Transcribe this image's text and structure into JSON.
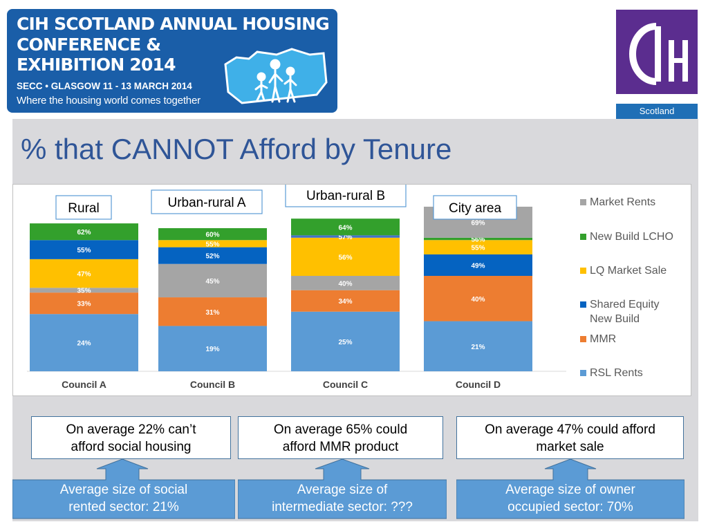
{
  "banner": {
    "line1": "CIH SCOTLAND ANNUAL HOUSING",
    "line2": "CONFERENCE &",
    "line3": "EXHIBITION 2014",
    "venue": "SECC • GLASGOW 11 - 13 MARCH 2014",
    "tagline": "Where the housing world comes together"
  },
  "logo": {
    "caption": "Scotland"
  },
  "slide": {
    "title": "% that CANNOT Afford by Tenure"
  },
  "colors": {
    "RSL Rents": "#5b9bd5",
    "MMR": "#ed7d31",
    "Market Rents": "#a5a5a5",
    "LQ Market Sale": "#ffc000",
    "Shared Equity New Build": "#0563c1",
    "Shared Equity New Build Alt": "#4472c4",
    "New Build LCHO": "#33a02c"
  },
  "chart_data": {
    "type": "bar",
    "categories": [
      "Council A",
      "Council B",
      "Council C",
      "Council D"
    ],
    "area_labels": [
      "Rural",
      "Urban-rural A",
      "Urban-rural B",
      "City area"
    ],
    "legend": [
      "Market Rents",
      "New Build LCHO",
      "LQ Market Sale",
      "Shared Equity New Build",
      "MMR",
      "RSL Rents"
    ],
    "legend_position": "right",
    "bars": [
      {
        "category": "Council A",
        "segments": [
          {
            "series": "RSL Rents",
            "value": 24,
            "label": "24%"
          },
          {
            "series": "MMR",
            "value": 33,
            "label": "33%"
          },
          {
            "series": "Market Rents",
            "value": 35,
            "label": "35%"
          },
          {
            "series": "LQ Market Sale",
            "value": 47,
            "label": "47%"
          },
          {
            "series": "Shared Equity New Build",
            "value": 55,
            "label": "55%"
          },
          {
            "series": "New Build LCHO",
            "value": 62,
            "label": "62%"
          }
        ]
      },
      {
        "category": "Council B",
        "segments": [
          {
            "series": "RSL Rents",
            "value": 19,
            "label": "19%"
          },
          {
            "series": "MMR",
            "value": 31,
            "label": "31%"
          },
          {
            "series": "Market Rents",
            "value": 45,
            "label": "45%"
          },
          {
            "series": "Shared Equity New Build",
            "value": 52,
            "label": "52%"
          },
          {
            "series": "LQ Market Sale",
            "value": 55,
            "label": "55%"
          },
          {
            "series": "New Build LCHO",
            "value": 60,
            "label": "60%"
          }
        ]
      },
      {
        "category": "Council C",
        "segments": [
          {
            "series": "RSL Rents",
            "value": 25,
            "label": "25%"
          },
          {
            "series": "MMR",
            "value": 34,
            "label": "34%"
          },
          {
            "series": "Market Rents",
            "value": 40,
            "label": "40%"
          },
          {
            "series": "LQ Market Sale",
            "value": 56,
            "label": "56%"
          },
          {
            "series": "Shared Equity New Build",
            "value": 57,
            "label": "57%",
            "alt_color": true
          },
          {
            "series": "New Build LCHO",
            "value": 64,
            "label": "64%"
          }
        ]
      },
      {
        "category": "Council D",
        "segments": [
          {
            "series": "RSL Rents",
            "value": 21,
            "label": "21%"
          },
          {
            "series": "MMR",
            "value": 40,
            "label": "40%"
          },
          {
            "series": "Shared Equity New Build",
            "value": 49,
            "label": "49%"
          },
          {
            "series": "LQ Market Sale",
            "value": 55,
            "label": "55%"
          },
          {
            "series": "New Build LCHO",
            "value": 56,
            "label": "56%"
          },
          {
            "series": "Market Rents",
            "value": 69,
            "label": "69%"
          }
        ]
      }
    ]
  },
  "info_boxes": [
    {
      "text": "On average 22% can’t afford social housing",
      "line1": "On average 22% can’t",
      "line2": "afford social housing"
    },
    {
      "text": "On average 65% could afford MMR product",
      "line1": "On average 65% could",
      "line2": "afford MMR product"
    },
    {
      "text": "On average 47% could afford market sale",
      "line1": "On average 47% could afford",
      "line2": "market sale"
    }
  ],
  "callouts": [
    {
      "line1": "Average size of social",
      "line2": "rented sector: 21%"
    },
    {
      "line1": "Average size of",
      "line2": "intermediate sector:  ???"
    },
    {
      "line1": "Average size of owner",
      "line2": "occupied sector: 70%"
    }
  ]
}
